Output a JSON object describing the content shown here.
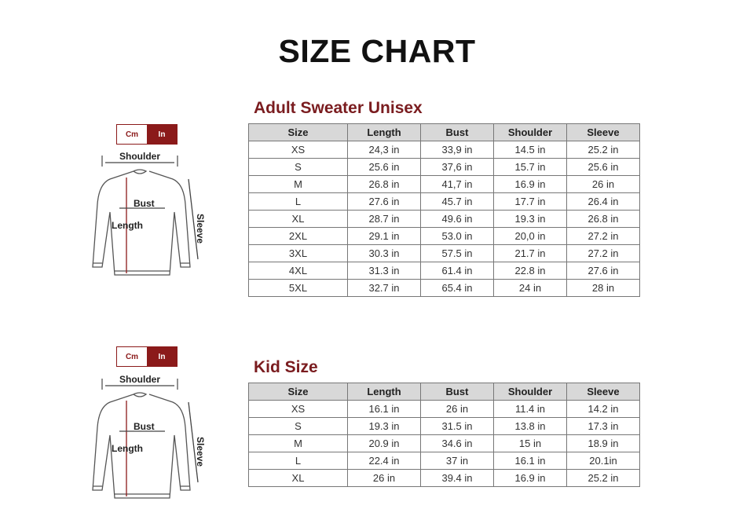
{
  "title": "SIZE CHART",
  "colors": {
    "accent": "#8b1a1a",
    "header_bg": "#d8d8d8"
  },
  "diagram_labels": {
    "shoulder": "Shoulder",
    "bust": "Bust",
    "length": "Length",
    "sleeve": "Sleeve"
  },
  "unit_toggle": {
    "cm": "Cm",
    "in": "In",
    "selected": "In"
  },
  "adult": {
    "title": "Adult Sweater Unisex",
    "headers": [
      "Size",
      "Length",
      "Bust",
      "Shoulder",
      "Sleeve"
    ],
    "rows": [
      [
        "XS",
        "24,3 in",
        "33,9 in",
        "14.5 in",
        "25.2 in"
      ],
      [
        "S",
        "25.6 in",
        "37,6 in",
        "15.7 in",
        "25.6 in"
      ],
      [
        "M",
        "26.8 in",
        "41,7 in",
        "16.9 in",
        "26 in"
      ],
      [
        "L",
        "27.6 in",
        "45.7 in",
        "17.7 in",
        "26.4 in"
      ],
      [
        "XL",
        "28.7 in",
        "49.6 in",
        "19.3 in",
        "26.8 in"
      ],
      [
        "2XL",
        "29.1 in",
        "53.0 in",
        "20,0 in",
        "27.2 in"
      ],
      [
        "3XL",
        "30.3 in",
        "57.5 in",
        "21.7 in",
        "27.2 in"
      ],
      [
        "4XL",
        "31.3 in",
        "61.4 in",
        "22.8 in",
        "27.6 in"
      ],
      [
        "5XL",
        "32.7 in",
        "65.4 in",
        "24 in",
        "28 in"
      ]
    ]
  },
  "kid": {
    "title": "Kid Size",
    "headers": [
      "Size",
      "Length",
      "Bust",
      "Shoulder",
      "Sleeve"
    ],
    "rows": [
      [
        "XS",
        "16.1 in",
        "26 in",
        "11.4 in",
        "14.2 in"
      ],
      [
        "S",
        "19.3 in",
        "31.5 in",
        "13.8 in",
        "17.3 in"
      ],
      [
        "M",
        "20.9 in",
        "34.6 in",
        "15 in",
        "18.9 in"
      ],
      [
        "L",
        "22.4 in",
        "37 in",
        "16.1 in",
        "20.1in"
      ],
      [
        "XL",
        "26 in",
        "39.4 in",
        "16.9 in",
        "25.2 in"
      ]
    ]
  }
}
